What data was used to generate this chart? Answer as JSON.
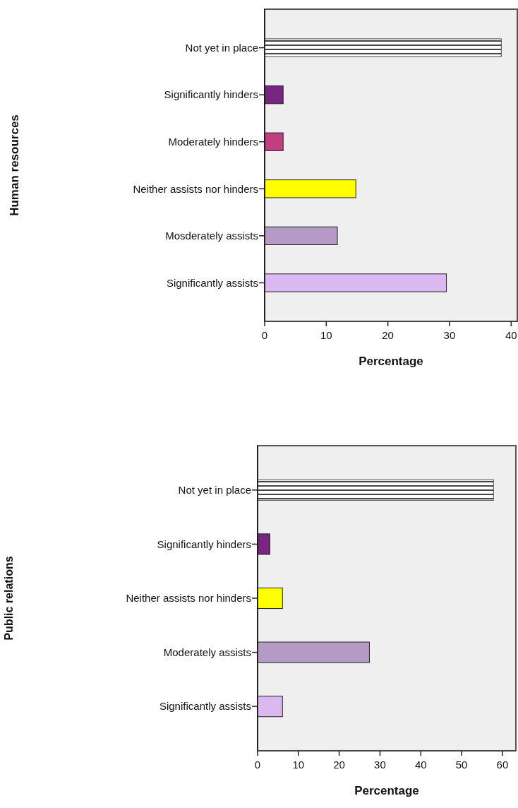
{
  "chart_data": [
    {
      "type": "bar",
      "orientation": "horizontal",
      "ylabel": "Human resources",
      "xlabel": "Percentage",
      "categories": [
        "Not yet in place",
        "Significantly hinders",
        "Moderately hinders",
        "Neither assists nor hinders",
        "Mosderately assists",
        "Significantly assists"
      ],
      "values": [
        38.4,
        3.0,
        3.0,
        14.8,
        11.8,
        29.5
      ],
      "colors": [
        "#444444",
        "#772680",
        "#c0407f",
        "#ffff00",
        "#b59ac6",
        "#dcb8f0"
      ],
      "xlim": [
        0,
        41
      ],
      "xticks": [
        0,
        10,
        20,
        30,
        40
      ],
      "grid": false
    },
    {
      "type": "bar",
      "orientation": "horizontal",
      "ylabel": "Public relations",
      "xlabel": "Percentage",
      "categories": [
        "Not yet in place",
        "Significantly hinders",
        "Neither assists nor hinders",
        "Moderately assists",
        "Significantly assists"
      ],
      "values": [
        57.8,
        3.0,
        6.1,
        27.4,
        6.1
      ],
      "colors": [
        "#444444",
        "#772680",
        "#ffff00",
        "#b59ac6",
        "#dcb8f0"
      ],
      "xlim": [
        0,
        63.3
      ],
      "xticks": [
        0,
        10,
        20,
        30,
        40,
        50,
        60
      ],
      "grid": false
    }
  ]
}
